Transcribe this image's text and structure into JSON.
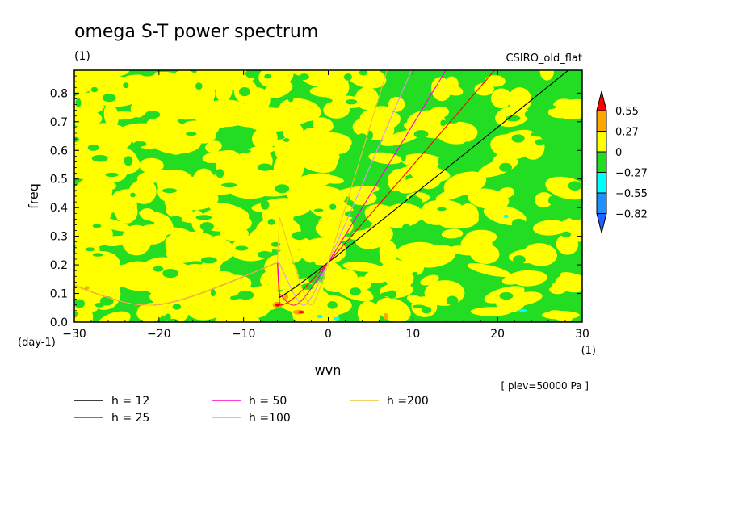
{
  "chart_data": {
    "type": "heatmap",
    "title": "omega S-T power spectrum",
    "units_left": "(1)",
    "model_label": "CSIRO_old_flat",
    "xlabel": "wvn",
    "ylabel": "freq",
    "x_unit": "(1)",
    "y_unit": "(day-1)",
    "xlim": [
      -30,
      30
    ],
    "ylim": [
      0,
      0.88
    ],
    "x_ticks": [
      "-30",
      "-20",
      "-10",
      "0",
      "10",
      "20",
      "30"
    ],
    "y_ticks": [
      "0.0",
      "0.1",
      "0.2",
      "0.3",
      "0.4",
      "0.5",
      "0.6",
      "0.7",
      "0.8"
    ],
    "plev_note": "[ plev=50000 Pa ]",
    "colorbar": {
      "levels": [
        "0.55",
        "0.27",
        "0",
        "-0.27",
        "-0.55",
        "-0.82"
      ],
      "colors": [
        "#ff0000",
        "#ffa500",
        "#ffff00",
        "#22dd22",
        "#00ffff",
        "#1e90ff",
        "#1e64ff"
      ]
    },
    "dispersion_curves": [
      {
        "name": "h = 12",
        "h": 12,
        "color": "#000000"
      },
      {
        "name": "h = 25",
        "h": 25,
        "color": "#ff0000"
      },
      {
        "name": "h = 50",
        "h": 50,
        "color": "#ff00c8"
      },
      {
        "name": "h =100",
        "h": 100,
        "color": "#d89be8"
      },
      {
        "name": "h =200",
        "h": 200,
        "color": "#f0c030"
      }
    ]
  }
}
